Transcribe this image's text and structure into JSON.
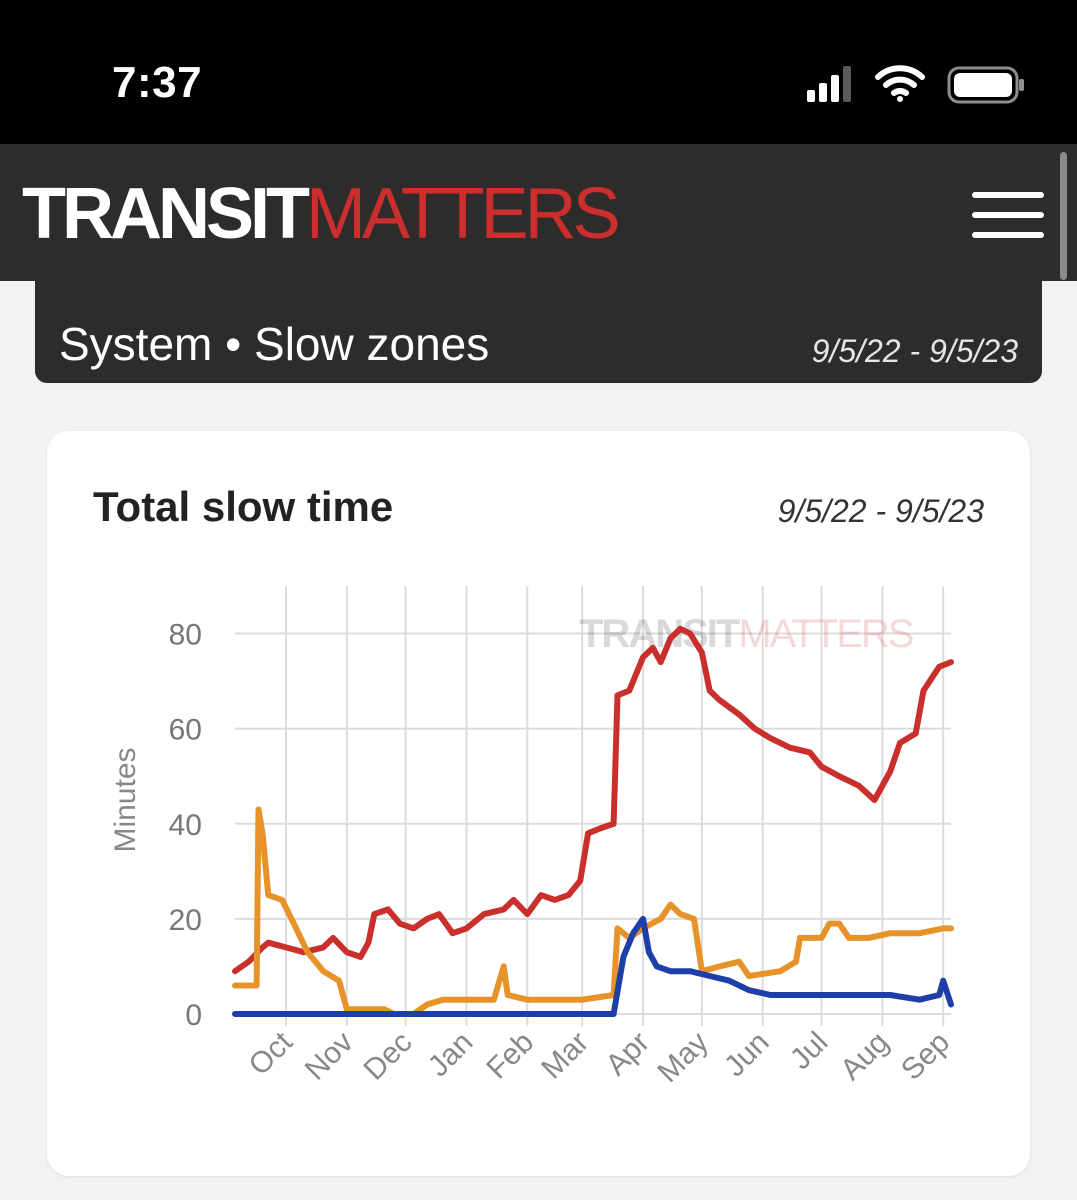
{
  "status_bar": {
    "time": "7:37",
    "icons": [
      "cellular-signal-icon",
      "wifi-icon",
      "battery-icon"
    ]
  },
  "header": {
    "logo_part1": "TRANSIT",
    "logo_part2": "MATTERS",
    "menu_icon": "hamburger-menu-icon",
    "colors": {
      "background": "#2e2c2b",
      "brand_red": "#cc2e2e"
    }
  },
  "page": {
    "title": "System • Slow zones",
    "date_range": "9/5/22 - 9/5/23"
  },
  "card": {
    "title": "Total slow time",
    "date_range": "9/5/22 - 9/5/23"
  },
  "chart_data": {
    "type": "line",
    "ylabel": "Minutes",
    "ylim": [
      0,
      90
    ],
    "yticks": [
      0,
      20,
      40,
      60,
      80
    ],
    "x_range": [
      "2022-09-05",
      "2023-09-05"
    ],
    "month_ticks": [
      {
        "label": "Oct",
        "date": "2022-10-01"
      },
      {
        "label": "Nov",
        "date": "2022-11-01"
      },
      {
        "label": "Dec",
        "date": "2022-12-01"
      },
      {
        "label": "Jan",
        "date": "2023-01-01"
      },
      {
        "label": "Feb",
        "date": "2023-02-01"
      },
      {
        "label": "Mar",
        "date": "2023-03-01"
      },
      {
        "label": "Apr",
        "date": "2023-04-01"
      },
      {
        "label": "May",
        "date": "2023-05-01"
      },
      {
        "label": "Jun",
        "date": "2023-06-01"
      },
      {
        "label": "Jul",
        "date": "2023-07-01"
      },
      {
        "label": "Aug",
        "date": "2023-08-01"
      },
      {
        "label": "Sep",
        "date": "2023-09-01"
      }
    ],
    "grid": true,
    "legend": "none",
    "watermark": {
      "part1": "TRANSIT",
      "part2": "MATTERS"
    },
    "series": [
      {
        "color": "#c9302c",
        "points": [
          [
            "2022-09-05",
            9
          ],
          [
            "2022-09-12",
            11
          ],
          [
            "2022-09-19",
            14
          ],
          [
            "2022-09-22",
            15
          ],
          [
            "2022-10-01",
            14
          ],
          [
            "2022-10-10",
            13
          ],
          [
            "2022-10-20",
            14
          ],
          [
            "2022-10-25",
            16
          ],
          [
            "2022-11-01",
            13
          ],
          [
            "2022-11-08",
            12
          ],
          [
            "2022-11-12",
            15
          ],
          [
            "2022-11-15",
            21
          ],
          [
            "2022-11-22",
            22
          ],
          [
            "2022-11-28",
            19
          ],
          [
            "2022-12-05",
            18
          ],
          [
            "2022-12-12",
            20
          ],
          [
            "2022-12-18",
            21
          ],
          [
            "2022-12-25",
            17
          ],
          [
            "2023-01-01",
            18
          ],
          [
            "2023-01-10",
            21
          ],
          [
            "2023-01-20",
            22
          ],
          [
            "2023-01-25",
            24
          ],
          [
            "2023-02-01",
            21
          ],
          [
            "2023-02-08",
            25
          ],
          [
            "2023-02-15",
            24
          ],
          [
            "2023-02-22",
            25
          ],
          [
            "2023-02-28",
            28
          ],
          [
            "2023-03-04",
            38
          ],
          [
            "2023-03-10",
            39
          ],
          [
            "2023-03-17",
            40
          ],
          [
            "2023-03-19",
            67
          ],
          [
            "2023-03-25",
            68
          ],
          [
            "2023-04-01",
            75
          ],
          [
            "2023-04-06",
            77
          ],
          [
            "2023-04-10",
            74
          ],
          [
            "2023-04-15",
            79
          ],
          [
            "2023-04-20",
            81
          ],
          [
            "2023-04-25",
            80
          ],
          [
            "2023-05-01",
            76
          ],
          [
            "2023-05-05",
            68
          ],
          [
            "2023-05-10",
            66
          ],
          [
            "2023-05-20",
            63
          ],
          [
            "2023-05-28",
            60
          ],
          [
            "2023-06-05",
            58
          ],
          [
            "2023-06-15",
            56
          ],
          [
            "2023-06-25",
            55
          ],
          [
            "2023-07-01",
            52
          ],
          [
            "2023-07-10",
            50
          ],
          [
            "2023-07-20",
            48
          ],
          [
            "2023-07-28",
            45
          ],
          [
            "2023-08-05",
            51
          ],
          [
            "2023-08-10",
            57
          ],
          [
            "2023-08-18",
            59
          ],
          [
            "2023-08-22",
            68
          ],
          [
            "2023-08-30",
            73
          ],
          [
            "2023-09-05",
            74
          ]
        ]
      },
      {
        "color": "#e8922a",
        "points": [
          [
            "2022-09-05",
            6
          ],
          [
            "2022-09-16",
            6
          ],
          [
            "2022-09-17",
            43
          ],
          [
            "2022-09-19",
            38
          ],
          [
            "2022-09-22",
            25
          ],
          [
            "2022-09-29",
            24
          ],
          [
            "2022-10-05",
            19
          ],
          [
            "2022-10-12",
            13
          ],
          [
            "2022-10-20",
            9
          ],
          [
            "2022-10-28",
            7
          ],
          [
            "2022-11-01",
            1
          ],
          [
            "2022-11-10",
            1
          ],
          [
            "2022-11-20",
            1
          ],
          [
            "2022-11-25",
            0
          ],
          [
            "2022-12-05",
            0
          ],
          [
            "2022-12-12",
            2
          ],
          [
            "2022-12-20",
            3
          ],
          [
            "2023-01-01",
            3
          ],
          [
            "2023-01-15",
            3
          ],
          [
            "2023-01-20",
            10
          ],
          [
            "2023-01-22",
            4
          ],
          [
            "2023-02-01",
            3
          ],
          [
            "2023-02-15",
            3
          ],
          [
            "2023-03-01",
            3
          ],
          [
            "2023-03-17",
            4
          ],
          [
            "2023-03-19",
            18
          ],
          [
            "2023-03-25",
            16
          ],
          [
            "2023-04-01",
            18
          ],
          [
            "2023-04-10",
            20
          ],
          [
            "2023-04-15",
            23
          ],
          [
            "2023-04-20",
            21
          ],
          [
            "2023-04-27",
            20
          ],
          [
            "2023-05-01",
            9
          ],
          [
            "2023-05-10",
            10
          ],
          [
            "2023-05-20",
            11
          ],
          [
            "2023-05-25",
            8
          ],
          [
            "2023-06-10",
            9
          ],
          [
            "2023-06-18",
            11
          ],
          [
            "2023-06-20",
            16
          ],
          [
            "2023-07-01",
            16
          ],
          [
            "2023-07-05",
            19
          ],
          [
            "2023-07-10",
            19
          ],
          [
            "2023-07-15",
            16
          ],
          [
            "2023-07-25",
            16
          ],
          [
            "2023-08-05",
            17
          ],
          [
            "2023-08-20",
            17
          ],
          [
            "2023-09-01",
            18
          ],
          [
            "2023-09-05",
            18
          ]
        ]
      },
      {
        "color": "#1f3fa8",
        "points": [
          [
            "2022-09-05",
            0
          ],
          [
            "2022-10-01",
            0
          ],
          [
            "2022-11-01",
            0
          ],
          [
            "2022-12-01",
            0
          ],
          [
            "2023-01-01",
            0
          ],
          [
            "2023-02-01",
            0
          ],
          [
            "2023-03-01",
            0
          ],
          [
            "2023-03-17",
            0
          ],
          [
            "2023-03-22",
            12
          ],
          [
            "2023-03-27",
            17
          ],
          [
            "2023-04-01",
            20
          ],
          [
            "2023-04-04",
            13
          ],
          [
            "2023-04-08",
            10
          ],
          [
            "2023-04-15",
            9
          ],
          [
            "2023-04-25",
            9
          ],
          [
            "2023-05-05",
            8
          ],
          [
            "2023-05-15",
            7
          ],
          [
            "2023-05-25",
            5
          ],
          [
            "2023-06-05",
            4
          ],
          [
            "2023-06-20",
            4
          ],
          [
            "2023-07-05",
            4
          ],
          [
            "2023-07-20",
            4
          ],
          [
            "2023-08-05",
            4
          ],
          [
            "2023-08-20",
            3
          ],
          [
            "2023-08-30",
            4
          ],
          [
            "2023-09-01",
            7
          ],
          [
            "2023-09-05",
            2
          ]
        ]
      }
    ]
  }
}
